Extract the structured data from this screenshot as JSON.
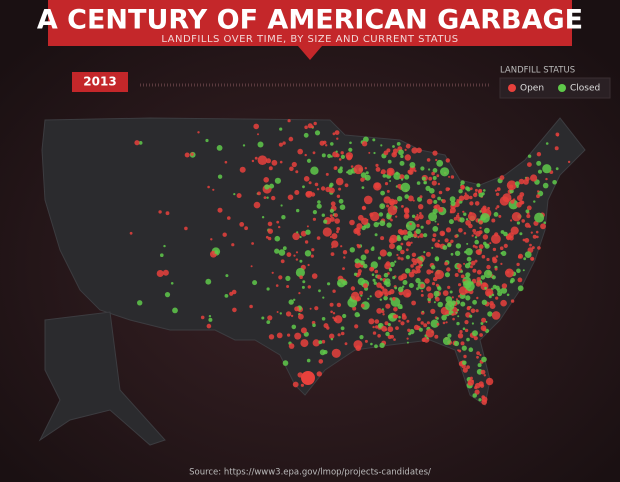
{
  "header": {
    "title": "A CENTURY OF AMERICAN GARBAGE",
    "subtitle": "LANDFILLS OVER TIME, BY SIZE AND CURRENT STATUS"
  },
  "timeline": {
    "year": "2013"
  },
  "legend": {
    "title": "LANDFILL STATUS",
    "items": [
      {
        "label": "Open",
        "color": "#e8413c"
      },
      {
        "label": "Closed",
        "color": "#5fc94a"
      }
    ]
  },
  "footer": {
    "source": "Source: https://www3.epa.gov/lmop/projects-candidates/"
  }
}
